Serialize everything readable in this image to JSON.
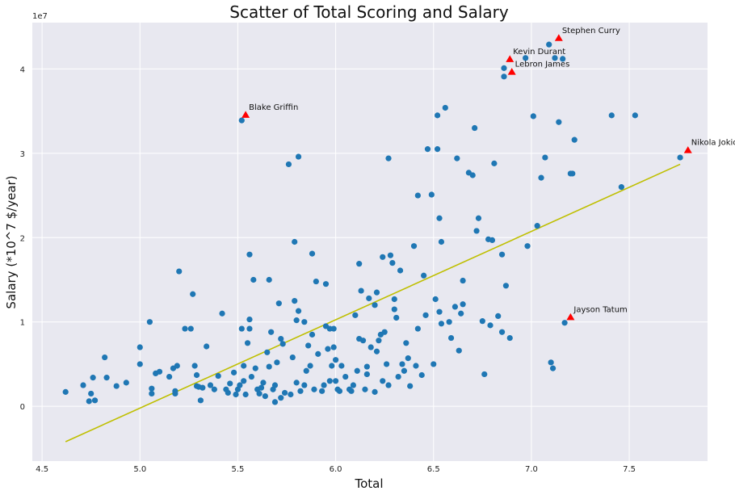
{
  "chart_data": {
    "type": "scatter",
    "title": "Scatter of Total Scoring and Salary",
    "xlabel": "Total",
    "ylabel": "Salary (*10^7 $/year)",
    "y_exponent_label": "1e7",
    "xlim": [
      4.45,
      7.9
    ],
    "ylim": [
      -0.65,
      4.55
    ],
    "xticks": [
      4.5,
      5.0,
      5.5,
      6.0,
      6.5,
      7.0,
      7.5
    ],
    "xtick_labels": [
      "4.5",
      "5.0",
      "5.5",
      "6.0",
      "6.5",
      "7.0",
      "7.5"
    ],
    "yticks": [
      0,
      1,
      2,
      3,
      4
    ],
    "ytick_labels": [
      "0",
      "1",
      "2",
      "3",
      "4"
    ],
    "grid": true,
    "background": "#e8e8f0",
    "point_color": "#1f77b4",
    "line_color": "#bfbf00",
    "marker_color": "#ff0000",
    "regression_line": {
      "x": [
        4.62,
        7.76
      ],
      "y": [
        -0.42,
        2.87
      ]
    },
    "points": [
      [
        4.62,
        0.17
      ],
      [
        4.71,
        0.25
      ],
      [
        4.74,
        0.06
      ],
      [
        4.75,
        0.15
      ],
      [
        4.76,
        0.34
      ],
      [
        4.77,
        0.07
      ],
      [
        4.82,
        0.58
      ],
      [
        4.83,
        0.34
      ],
      [
        4.88,
        0.24
      ],
      [
        4.93,
        0.28
      ],
      [
        5.0,
        0.7
      ],
      [
        5.0,
        0.5
      ],
      [
        5.05,
        1.0
      ],
      [
        5.06,
        0.21
      ],
      [
        5.06,
        0.15
      ],
      [
        5.08,
        0.39
      ],
      [
        5.1,
        0.41
      ],
      [
        5.15,
        0.35
      ],
      [
        5.17,
        0.45
      ],
      [
        5.18,
        0.15
      ],
      [
        5.18,
        0.18
      ],
      [
        5.19,
        0.48
      ],
      [
        5.2,
        1.6
      ],
      [
        5.23,
        0.92
      ],
      [
        5.26,
        0.92
      ],
      [
        5.27,
        1.33
      ],
      [
        5.28,
        0.48
      ],
      [
        5.29,
        0.37
      ],
      [
        5.29,
        0.24
      ],
      [
        5.3,
        0.23
      ],
      [
        5.31,
        0.07
      ],
      [
        5.32,
        0.22
      ],
      [
        5.34,
        0.71
      ],
      [
        5.36,
        0.25
      ],
      [
        5.38,
        0.2
      ],
      [
        5.4,
        0.36
      ],
      [
        5.42,
        1.1
      ],
      [
        5.44,
        0.2
      ],
      [
        5.45,
        0.16
      ],
      [
        5.46,
        0.27
      ],
      [
        5.48,
        0.4
      ],
      [
        5.49,
        0.14
      ],
      [
        5.5,
        0.2
      ],
      [
        5.51,
        0.25
      ],
      [
        5.52,
        3.39
      ],
      [
        5.52,
        0.92
      ],
      [
        5.53,
        0.48
      ],
      [
        5.53,
        0.3
      ],
      [
        5.54,
        0.14
      ],
      [
        5.55,
        0.75
      ],
      [
        5.56,
        1.03
      ],
      [
        5.56,
        1.8
      ],
      [
        5.56,
        0.92
      ],
      [
        5.57,
        0.35
      ],
      [
        5.58,
        1.5
      ],
      [
        5.59,
        0.45
      ],
      [
        5.6,
        0.2
      ],
      [
        5.61,
        0.15
      ],
      [
        5.62,
        0.22
      ],
      [
        5.63,
        0.28
      ],
      [
        5.64,
        0.12
      ],
      [
        5.65,
        0.64
      ],
      [
        5.66,
        1.5
      ],
      [
        5.66,
        0.47
      ],
      [
        5.67,
        0.88
      ],
      [
        5.68,
        0.2
      ],
      [
        5.69,
        0.25
      ],
      [
        5.69,
        0.05
      ],
      [
        5.7,
        0.52
      ],
      [
        5.71,
        1.22
      ],
      [
        5.72,
        0.8
      ],
      [
        5.72,
        0.1
      ],
      [
        5.73,
        0.74
      ],
      [
        5.74,
        0.16
      ],
      [
        5.76,
        2.87
      ],
      [
        5.77,
        0.14
      ],
      [
        5.78,
        0.58
      ],
      [
        5.79,
        1.95
      ],
      [
        5.79,
        1.25
      ],
      [
        5.8,
        1.02
      ],
      [
        5.8,
        0.28
      ],
      [
        5.81,
        2.96
      ],
      [
        5.81,
        1.13
      ],
      [
        5.82,
        0.18
      ],
      [
        5.84,
        1.0
      ],
      [
        5.84,
        0.25
      ],
      [
        5.85,
        0.42
      ],
      [
        5.86,
        0.72
      ],
      [
        5.87,
        0.48
      ],
      [
        5.88,
        1.81
      ],
      [
        5.88,
        0.85
      ],
      [
        5.89,
        0.2
      ],
      [
        5.9,
        1.48
      ],
      [
        5.91,
        0.62
      ],
      [
        5.93,
        0.18
      ],
      [
        5.94,
        0.25
      ],
      [
        5.95,
        1.45
      ],
      [
        5.95,
        0.95
      ],
      [
        5.96,
        0.68
      ],
      [
        5.97,
        0.92
      ],
      [
        5.97,
        0.3
      ],
      [
        5.98,
        0.48
      ],
      [
        5.99,
        0.92
      ],
      [
        5.99,
        0.7
      ],
      [
        6.0,
        0.55
      ],
      [
        6.0,
        0.3
      ],
      [
        6.01,
        0.2
      ],
      [
        6.02,
        0.18
      ],
      [
        6.03,
        0.48
      ],
      [
        6.05,
        0.35
      ],
      [
        6.07,
        0.2
      ],
      [
        6.08,
        0.18
      ],
      [
        6.09,
        0.25
      ],
      [
        6.1,
        1.08
      ],
      [
        6.11,
        0.42
      ],
      [
        6.12,
        1.69
      ],
      [
        6.12,
        0.8
      ],
      [
        6.13,
        1.37
      ],
      [
        6.14,
        0.78
      ],
      [
        6.15,
        0.2
      ],
      [
        6.16,
        0.47
      ],
      [
        6.16,
        0.38
      ],
      [
        6.17,
        1.28
      ],
      [
        6.18,
        0.7
      ],
      [
        6.2,
        1.2
      ],
      [
        6.2,
        0.17
      ],
      [
        6.21,
        1.35
      ],
      [
        6.21,
        0.65
      ],
      [
        6.22,
        0.78
      ],
      [
        6.23,
        0.85
      ],
      [
        6.24,
        1.77
      ],
      [
        6.24,
        0.3
      ],
      [
        6.25,
        0.88
      ],
      [
        6.26,
        0.5
      ],
      [
        6.27,
        2.94
      ],
      [
        6.27,
        0.25
      ],
      [
        6.28,
        1.79
      ],
      [
        6.29,
        1.7
      ],
      [
        6.3,
        1.27
      ],
      [
        6.3,
        1.15
      ],
      [
        6.31,
        1.05
      ],
      [
        6.32,
        0.35
      ],
      [
        6.33,
        1.61
      ],
      [
        6.34,
        0.5
      ],
      [
        6.35,
        0.42
      ],
      [
        6.36,
        0.75
      ],
      [
        6.37,
        0.57
      ],
      [
        6.38,
        0.24
      ],
      [
        6.4,
        1.9
      ],
      [
        6.41,
        0.48
      ],
      [
        6.42,
        2.5
      ],
      [
        6.42,
        0.92
      ],
      [
        6.44,
        0.37
      ],
      [
        6.45,
        1.55
      ],
      [
        6.46,
        1.08
      ],
      [
        6.47,
        3.05
      ],
      [
        6.49,
        2.51
      ],
      [
        6.5,
        0.5
      ],
      [
        6.51,
        1.27
      ],
      [
        6.52,
        3.45
      ],
      [
        6.52,
        3.05
      ],
      [
        6.53,
        2.23
      ],
      [
        6.53,
        1.12
      ],
      [
        6.54,
        1.95
      ],
      [
        6.54,
        0.98
      ],
      [
        6.56,
        3.54
      ],
      [
        6.58,
        1.0
      ],
      [
        6.59,
        0.81
      ],
      [
        6.61,
        1.18
      ],
      [
        6.62,
        2.94
      ],
      [
        6.63,
        0.66
      ],
      [
        6.64,
        1.1
      ],
      [
        6.65,
        1.49
      ],
      [
        6.65,
        1.21
      ],
      [
        6.68,
        2.77
      ],
      [
        6.7,
        2.74
      ],
      [
        6.71,
        3.3
      ],
      [
        6.72,
        2.08
      ],
      [
        6.73,
        2.23
      ],
      [
        6.75,
        1.01
      ],
      [
        6.76,
        0.38
      ],
      [
        6.78,
        1.98
      ],
      [
        6.79,
        0.96
      ],
      [
        6.8,
        1.97
      ],
      [
        6.81,
        2.88
      ],
      [
        6.83,
        1.07
      ],
      [
        6.85,
        1.8
      ],
      [
        6.85,
        0.88
      ],
      [
        6.86,
        4.01
      ],
      [
        6.86,
        3.91
      ],
      [
        6.87,
        1.43
      ],
      [
        6.89,
        0.81
      ],
      [
        6.97,
        4.13
      ],
      [
        6.98,
        1.9
      ],
      [
        7.01,
        3.44
      ],
      [
        7.03,
        2.14
      ],
      [
        7.05,
        2.71
      ],
      [
        7.07,
        2.95
      ],
      [
        7.09,
        4.29
      ],
      [
        7.1,
        0.52
      ],
      [
        7.11,
        0.45
      ],
      [
        7.12,
        4.13
      ],
      [
        7.14,
        3.37
      ],
      [
        7.16,
        4.12
      ],
      [
        7.17,
        0.99
      ],
      [
        7.2,
        2.76
      ],
      [
        7.21,
        2.76
      ],
      [
        7.22,
        3.16
      ],
      [
        7.41,
        3.45
      ],
      [
        7.46,
        2.6
      ],
      [
        7.53,
        3.45
      ],
      [
        7.76,
        2.95
      ]
    ],
    "annotations": [
      {
        "label": "Stephen Curry",
        "x": 7.14,
        "y": 4.37
      },
      {
        "label": "Kevin Durant",
        "x": 6.89,
        "y": 4.12
      },
      {
        "label": "Lebron James",
        "x": 6.9,
        "y": 3.97
      },
      {
        "label": "Blake Griffin",
        "x": 5.54,
        "y": 3.46
      },
      {
        "label": "Nikola Jokic",
        "x": 7.8,
        "y": 3.04
      },
      {
        "label": "Jayson Tatum",
        "x": 7.2,
        "y": 1.06
      }
    ]
  }
}
